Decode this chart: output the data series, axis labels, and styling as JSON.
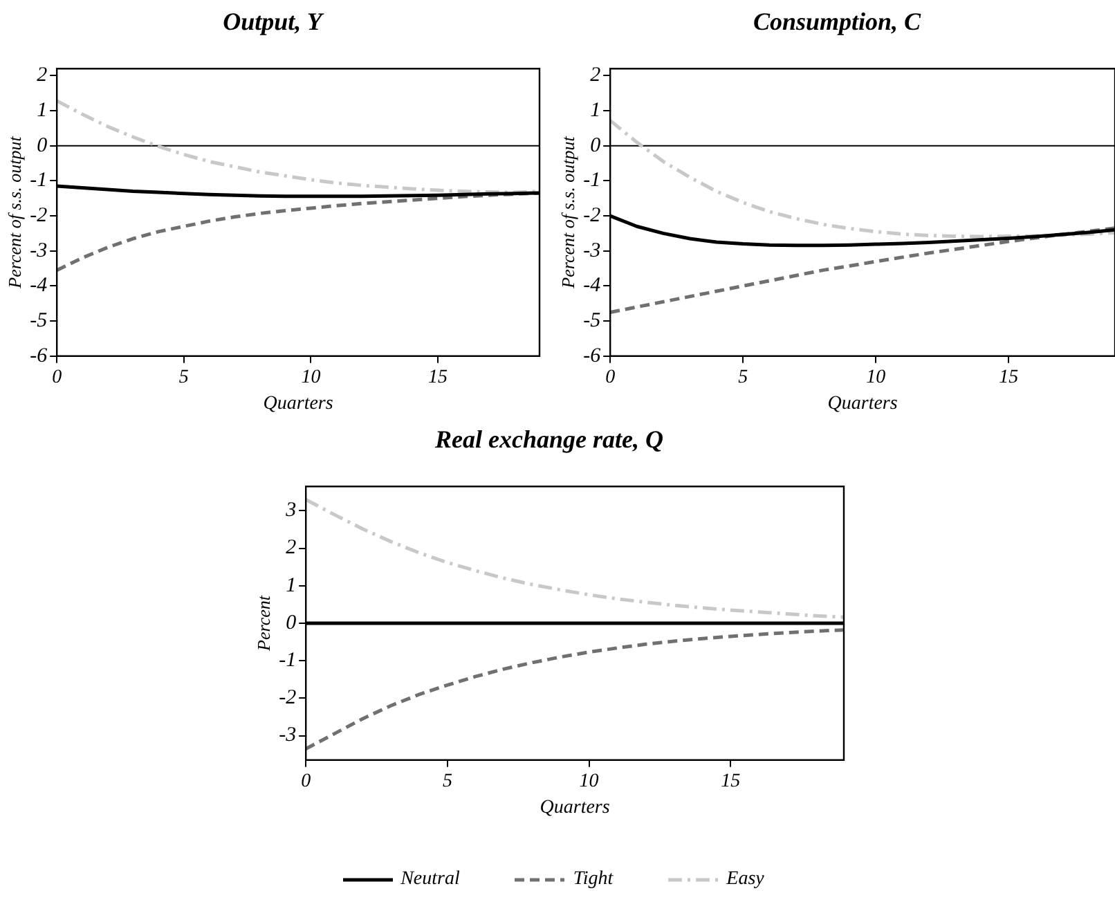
{
  "chart_data": [
    {
      "type": "line",
      "title": "Output, Y",
      "xlabel": "Quarters",
      "ylabel": "Percent of s.s. output",
      "x": [
        0,
        1,
        2,
        3,
        4,
        5,
        6,
        7,
        8,
        9,
        10,
        11,
        12,
        13,
        14,
        15,
        16,
        17,
        18,
        19
      ],
      "xlim": [
        0,
        19
      ],
      "xticks": [
        0,
        5,
        10,
        15
      ],
      "ylim": [
        -6,
        2.2
      ],
      "yticks": [
        -6,
        -5,
        -4,
        -3,
        -2,
        -1,
        0,
        1,
        2
      ],
      "marker": "none",
      "grid": false,
      "legend": false,
      "ref_lines": [
        {
          "axis": "y",
          "value": 0,
          "color": "#000000"
        }
      ],
      "series": [
        {
          "color": "#000000",
          "line_style": "solid",
          "values": [
            -1.15,
            -1.2,
            -1.25,
            -1.3,
            -1.33,
            -1.36,
            -1.39,
            -1.41,
            -1.43,
            -1.44,
            -1.44,
            -1.44,
            -1.44,
            -1.43,
            -1.42,
            -1.41,
            -1.39,
            -1.37,
            -1.36,
            -1.35
          ]
        },
        {
          "color": "#707070",
          "line_style": "dashed",
          "values": [
            -3.55,
            -3.2,
            -2.9,
            -2.65,
            -2.45,
            -2.3,
            -2.15,
            -2.03,
            -1.93,
            -1.85,
            -1.78,
            -1.71,
            -1.65,
            -1.6,
            -1.55,
            -1.5,
            -1.45,
            -1.41,
            -1.38,
            -1.35
          ]
        },
        {
          "color": "#c8c8c8",
          "line_style": "dashdot",
          "values": [
            1.28,
            0.9,
            0.55,
            0.25,
            -0.02,
            -0.25,
            -0.45,
            -0.6,
            -0.75,
            -0.86,
            -0.97,
            -1.06,
            -1.13,
            -1.18,
            -1.23,
            -1.27,
            -1.3,
            -1.32,
            -1.33,
            -1.3
          ]
        }
      ]
    },
    {
      "type": "line",
      "title": "Consumption, C",
      "xlabel": "Quarters",
      "ylabel": "Percent of s.s. output",
      "x": [
        0,
        1,
        2,
        3,
        4,
        5,
        6,
        7,
        8,
        9,
        10,
        11,
        12,
        13,
        14,
        15,
        16,
        17,
        18,
        19
      ],
      "xlim": [
        0,
        19
      ],
      "xticks": [
        0,
        5,
        10,
        15
      ],
      "ylim": [
        -6,
        2.2
      ],
      "yticks": [
        -6,
        -5,
        -4,
        -3,
        -2,
        -1,
        0,
        1,
        2
      ],
      "marker": "none",
      "grid": false,
      "legend": false,
      "ref_lines": [
        {
          "axis": "y",
          "value": 0,
          "color": "#000000"
        }
      ],
      "series": [
        {
          "color": "#000000",
          "line_style": "solid",
          "values": [
            -2.0,
            -2.3,
            -2.5,
            -2.65,
            -2.75,
            -2.8,
            -2.83,
            -2.84,
            -2.84,
            -2.83,
            -2.81,
            -2.79,
            -2.76,
            -2.72,
            -2.68,
            -2.64,
            -2.59,
            -2.53,
            -2.47,
            -2.4
          ]
        },
        {
          "color": "#707070",
          "line_style": "dashed",
          "values": [
            -4.75,
            -4.6,
            -4.45,
            -4.3,
            -4.15,
            -4.0,
            -3.85,
            -3.7,
            -3.55,
            -3.43,
            -3.3,
            -3.18,
            -3.06,
            -2.95,
            -2.84,
            -2.73,
            -2.63,
            -2.53,
            -2.44,
            -2.35
          ]
        },
        {
          "color": "#c8c8c8",
          "line_style": "dashdot",
          "values": [
            0.72,
            0.1,
            -0.45,
            -0.9,
            -1.3,
            -1.62,
            -1.88,
            -2.08,
            -2.24,
            -2.36,
            -2.45,
            -2.52,
            -2.56,
            -2.58,
            -2.59,
            -2.58,
            -2.57,
            -2.55,
            -2.52,
            -2.48
          ]
        }
      ]
    },
    {
      "type": "line",
      "title": "Real exchange rate, Q",
      "xlabel": "Quarters",
      "ylabel": "Percent",
      "x": [
        0,
        1,
        2,
        3,
        4,
        5,
        6,
        7,
        8,
        9,
        10,
        11,
        12,
        13,
        14,
        15,
        16,
        17,
        18,
        19
      ],
      "xlim": [
        0,
        19
      ],
      "xticks": [
        0,
        5,
        10,
        15
      ],
      "ylim": [
        -3.65,
        3.65
      ],
      "yticks": [
        -3,
        -2,
        -1,
        0,
        1,
        2,
        3
      ],
      "marker": "none",
      "grid": false,
      "legend": "bottom",
      "series": [
        {
          "name": "Neutral",
          "color": "#000000",
          "line_style": "solid",
          "values": [
            0,
            0,
            0,
            0,
            0,
            0,
            0,
            0,
            0,
            0,
            0,
            0,
            0,
            0,
            0,
            0,
            0,
            0,
            0,
            0
          ]
        },
        {
          "name": "Tight",
          "color": "#707070",
          "line_style": "dashed",
          "values": [
            -3.35,
            -2.95,
            -2.55,
            -2.2,
            -1.9,
            -1.65,
            -1.42,
            -1.22,
            -1.05,
            -0.9,
            -0.77,
            -0.66,
            -0.56,
            -0.48,
            -0.41,
            -0.35,
            -0.3,
            -0.25,
            -0.21,
            -0.18
          ]
        },
        {
          "name": "Easy",
          "color": "#c8c8c8",
          "line_style": "dashdot",
          "values": [
            3.3,
            2.9,
            2.52,
            2.18,
            1.88,
            1.62,
            1.4,
            1.2,
            1.03,
            0.89,
            0.76,
            0.65,
            0.56,
            0.48,
            0.41,
            0.35,
            0.3,
            0.25,
            0.2,
            0.16
          ]
        }
      ]
    }
  ]
}
